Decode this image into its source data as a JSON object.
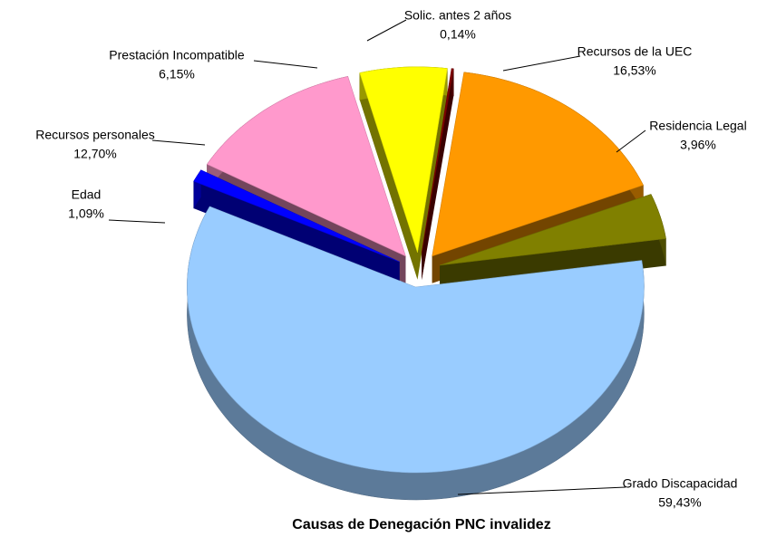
{
  "chart_data": {
    "type": "pie",
    "title": "Causas de Denegación PNC invalidez",
    "categories": [
      "Recursos de la UEC",
      "Residencia Legal",
      "Grado Discapacidad",
      "Edad",
      "Recursos personales",
      "Prestación Incompatible",
      "Solic. antes 2 años"
    ],
    "values": [
      16.53,
      3.96,
      59.43,
      1.09,
      12.7,
      6.15,
      0.14
    ],
    "value_labels": [
      "16,53%",
      "3,96%",
      "59,43%",
      "1,09%",
      "12,70%",
      "6,15%",
      "0,14%"
    ],
    "colors": [
      "#ff9900",
      "#808000",
      "#99ccff",
      "#0000ff",
      "#ff99cc",
      "#ffff00",
      "#800000"
    ]
  }
}
